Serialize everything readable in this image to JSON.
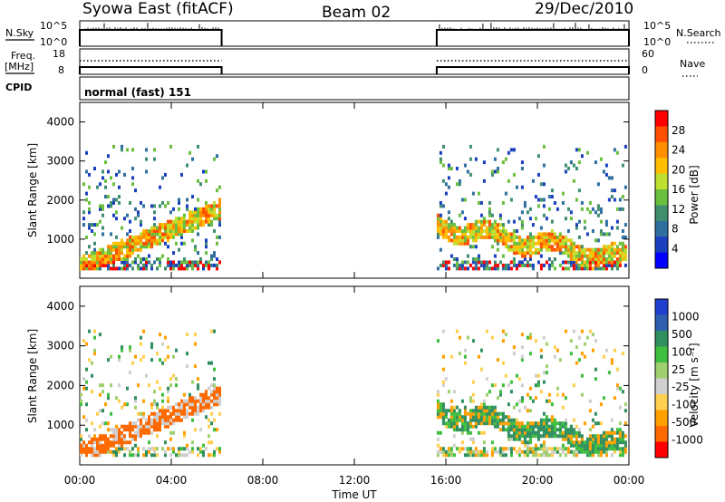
{
  "header": {
    "station": "Syowa East (fitACF)",
    "beam": "Beam 02",
    "date": "29/Dec/2010"
  },
  "side_labels": {
    "nsky": "N.Sky",
    "freq": "Freq.",
    "freq_unit": "[MHz]",
    "cpid": "CPID",
    "nsearch": "N.Search",
    "nave": "Nave"
  },
  "cpid_text": "normal (fast) 151",
  "colors": {
    "power": [
      "#0000ff",
      "#1a3fbf",
      "#2f6f9f",
      "#3f8f6f",
      "#6abf3f",
      "#bfdf2f",
      "#ffbf00",
      "#ff8f00",
      "#ff4f00",
      "#ff0000"
    ],
    "velocity": [
      "#ff0000",
      "#ff6a00",
      "#ff9f00",
      "#ffcf4f",
      "#cfcfcf",
      "#9fcf6f",
      "#3fbf3f",
      "#2f8f5f",
      "#2f5faf",
      "#1f3fcf"
    ]
  },
  "chart_data": [
    {
      "type": "line",
      "name_label": "N.Sky",
      "ylabel_left": [
        "10^5",
        "10^0"
      ],
      "ylabel_right": [
        "10^5",
        "10^0"
      ],
      "segments": [
        [
          0,
          6.2
        ],
        [
          15.6,
          24
        ]
      ]
    },
    {
      "type": "line",
      "ylabel_left": [
        "18",
        "8"
      ],
      "ylabel_right": [
        "60",
        "0"
      ],
      "segments": [
        [
          0,
          6.2
        ],
        [
          15.6,
          24
        ]
      ]
    },
    {
      "type": "heatmap",
      "ylabel": "Slant Range [km]",
      "y_ticks": [
        "1000",
        "2000",
        "3000",
        "4000"
      ],
      "colorbar_label": "Power [dB]",
      "colorbar_ticks": [
        "4",
        "8",
        "12",
        "16",
        "20",
        "24",
        "28"
      ],
      "ylim": [
        0,
        4500
      ]
    },
    {
      "type": "heatmap",
      "ylabel": "Slant Range [km]",
      "y_ticks": [
        "1000",
        "2000",
        "3000",
        "4000"
      ],
      "colorbar_label": "Velocity [m s⁻¹]",
      "colorbar_ticks": [
        "1000",
        "500",
        "100",
        "25",
        "-25",
        "-100",
        "-500",
        "-1000"
      ],
      "ylim": [
        0,
        4500
      ]
    }
  ],
  "x_axis": {
    "ticks": [
      "00:00",
      "04:00",
      "08:00",
      "12:00",
      "16:00",
      "20:00",
      "00:00"
    ],
    "label": "Time UT"
  }
}
